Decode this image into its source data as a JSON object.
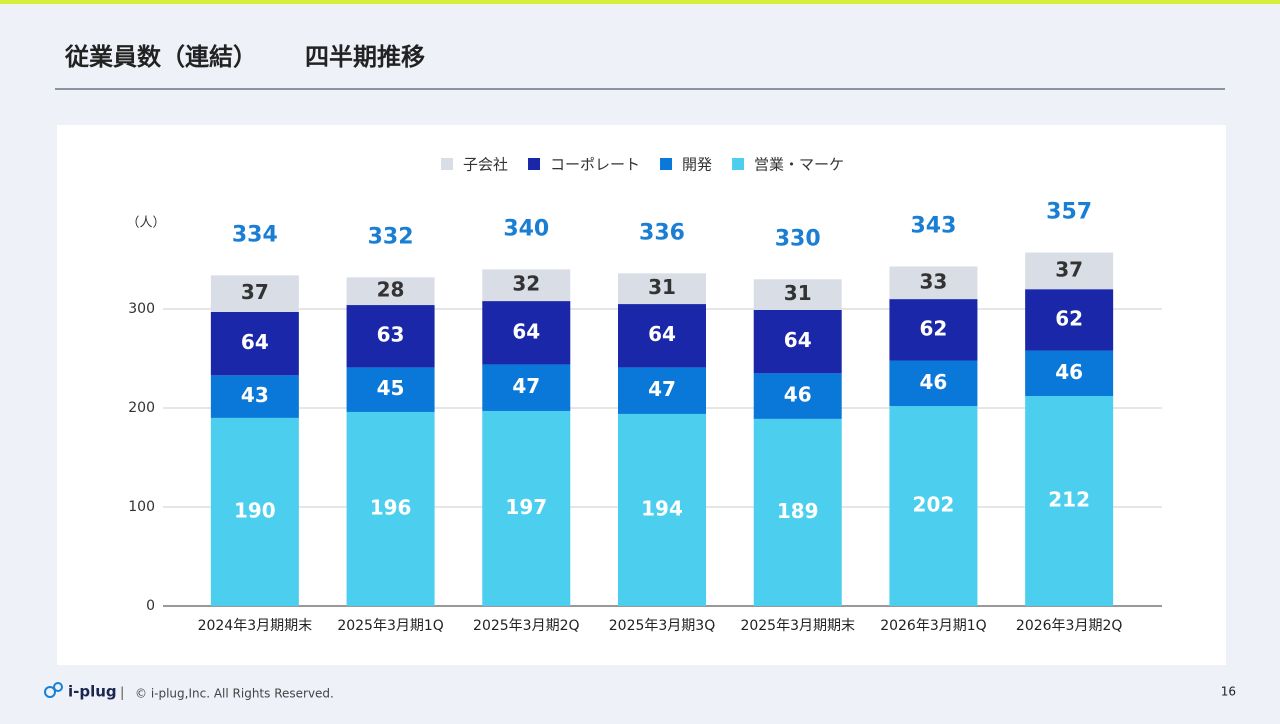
{
  "header": {
    "title": "従業員数（連結）",
    "subtitle": "四半期推移"
  },
  "chart_data": {
    "type": "stacked_bar",
    "y_unit": "（人）",
    "categories": [
      "2024年3月期期末",
      "2025年3月期1Q",
      "2025年3月期2Q",
      "2025年3月期3Q",
      "2025年3月期期末",
      "2026年3月期1Q",
      "2026年3月期2Q"
    ],
    "series": [
      {
        "name": "子会社",
        "color": "#d9dee6",
        "values": [
          37,
          28,
          32,
          31,
          31,
          33,
          37
        ]
      },
      {
        "name": "コーポレート",
        "color": "#1a27a8",
        "values": [
          64,
          63,
          64,
          64,
          64,
          62,
          62
        ]
      },
      {
        "name": "開発",
        "color": "#0a78d8",
        "values": [
          43,
          45,
          47,
          47,
          46,
          46,
          46
        ]
      },
      {
        "name": "営業・マーケ",
        "color": "#4ccfef",
        "values": [
          190,
          196,
          197,
          194,
          189,
          202,
          212
        ]
      }
    ],
    "totals": [
      334,
      332,
      340,
      336,
      330,
      343,
      357
    ],
    "ylim": [
      0,
      400
    ],
    "yticks": [
      0,
      100,
      200,
      300
    ],
    "grid": true,
    "legend": "top"
  },
  "footer": {
    "logo": "i-plug",
    "separator": "|",
    "copyright": "© i-plug,Inc. All Rights Reserved.",
    "page": "16"
  }
}
